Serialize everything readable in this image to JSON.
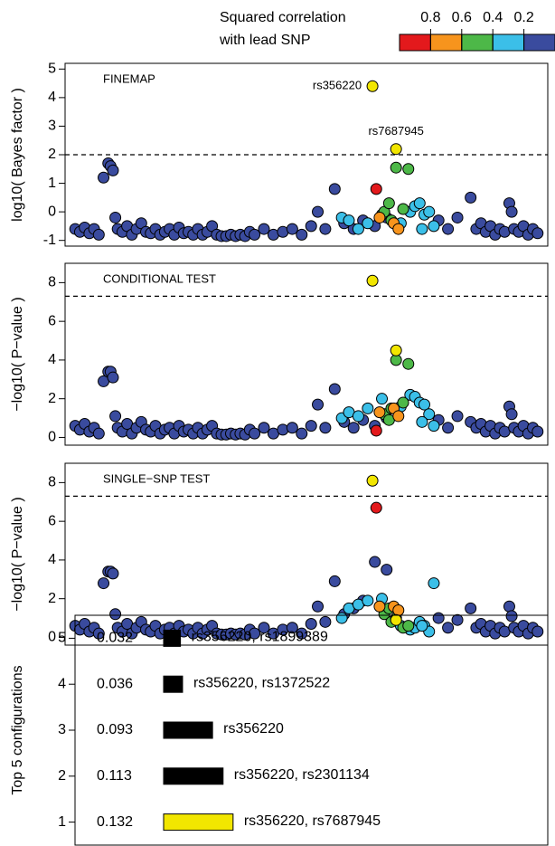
{
  "chart_data": [
    {
      "type": "scatter",
      "title": "FINEMAP",
      "y_label": "log10( Bayes factor )",
      "xlim": [
        0,
        100
      ],
      "ylim": [
        -1.2,
        5.2
      ],
      "yticks": [
        -1,
        0,
        1,
        2,
        3,
        4,
        5
      ],
      "threshold": 2,
      "colorbar": {
        "title": [
          "Squared correlation",
          "with lead SNP"
        ],
        "colors": [
          "#e3191c",
          "#f7941d",
          "#4db848",
          "#3bbfe8",
          "#3a4b9e"
        ],
        "ticks": [
          0.8,
          0.6,
          0.4,
          0.2
        ]
      },
      "series": [
        {
          "color": "#3a4b9e",
          "x": [
            1,
            2,
            3,
            4,
            5,
            6,
            7,
            8,
            8.5,
            9,
            9.5,
            10,
            11,
            12,
            13,
            14,
            15,
            16,
            17,
            18,
            19,
            20,
            21,
            22,
            23,
            24,
            25,
            26,
            27,
            28,
            29,
            30,
            31,
            32,
            33,
            34,
            35,
            36,
            37,
            38,
            39,
            41,
            43,
            45,
            47,
            49,
            51,
            52.4,
            54,
            56,
            58,
            60,
            62,
            64.5,
            67,
            78,
            80,
            82,
            84.8,
            86,
            87,
            88,
            89,
            90,
            91,
            92,
            93,
            93.5,
            94,
            95,
            96,
            97,
            98,
            99
          ],
          "values": [
            -0.6,
            -0.7,
            -0.55,
            -0.75,
            -0.6,
            -0.8,
            1.2,
            1.7,
            1.6,
            1.45,
            -0.2,
            -0.6,
            -0.7,
            -0.5,
            -0.8,
            -0.6,
            -0.4,
            -0.7,
            -0.75,
            -0.6,
            -0.8,
            -0.7,
            -0.6,
            -0.8,
            -0.55,
            -0.75,
            -0.7,
            -0.8,
            -0.6,
            -0.8,
            -0.7,
            -0.5,
            -0.8,
            -0.85,
            -0.85,
            -0.8,
            -0.85,
            -0.8,
            -0.85,
            -0.7,
            -0.8,
            -0.6,
            -0.8,
            -0.7,
            -0.6,
            -0.8,
            -0.5,
            0,
            -0.6,
            0.8,
            -0.4,
            -0.6,
            -0.3,
            -0.5,
            -0.2,
            -0.3,
            -0.6,
            -0.2,
            0.5,
            -0.6,
            -0.4,
            -0.7,
            -0.5,
            -0.8,
            -0.6,
            -0.7,
            0.3,
            0,
            -0.6,
            -0.7,
            -0.5,
            -0.8,
            -0.6,
            -0.75
          ]
        },
        {
          "color": "#3bbfe8",
          "x": [
            57.5,
            59,
            61,
            63,
            66,
            70,
            72,
            73,
            74,
            75,
            76,
            77,
            74.5
          ],
          "values": [
            -0.2,
            -0.3,
            -0.6,
            -0.4,
            -0.1,
            -0.4,
            0,
            0.2,
            0.3,
            -0.1,
            0,
            -0.5,
            -0.6
          ]
        },
        {
          "color": "#4db848",
          "x": [
            66.5,
            68,
            70.5,
            67.5,
            69,
            71.6
          ],
          "values": [
            0,
            -0.3,
            0.1,
            0.3,
            1.55,
            1.5
          ]
        },
        {
          "color": "#f7941d",
          "x": [
            65.5,
            68.5,
            69.5
          ],
          "values": [
            -0.2,
            -0.4,
            -0.6
          ]
        },
        {
          "color": "#e3191c",
          "x": [
            64.8
          ],
          "values": [
            0.8
          ]
        },
        {
          "color": "#f2e600",
          "x": [
            64,
            69
          ],
          "values": [
            4.4,
            2.2
          ],
          "point_labels": [
            "rs356220",
            "rs7687945"
          ],
          "point_label_sides": [
            "left",
            "above"
          ]
        }
      ]
    },
    {
      "type": "scatter",
      "title": "CONDITIONAL TEST",
      "y_label": "−log10( P−value )",
      "xlim": [
        0,
        100
      ],
      "ylim": [
        -0.4,
        9
      ],
      "yticks": [
        0,
        2,
        4,
        6,
        8
      ],
      "threshold": 7.3,
      "series": [
        {
          "color": "#3a4b9e",
          "x": [
            1,
            2,
            3,
            4,
            5,
            6,
            7,
            8,
            8.5,
            9,
            9.5,
            10,
            11,
            12,
            13,
            14,
            15,
            16,
            17,
            18,
            19,
            20,
            21,
            22,
            23,
            24,
            25,
            26,
            27,
            28,
            29,
            30,
            31,
            32,
            33,
            34,
            35,
            36,
            37,
            38,
            39,
            41,
            43,
            45,
            47,
            49,
            51,
            52.4,
            54,
            56,
            58,
            60,
            62,
            64.5,
            67,
            78,
            80,
            82,
            84.8,
            86,
            87,
            88,
            89,
            90,
            91,
            92,
            93,
            93.5,
            94,
            95,
            96,
            97,
            98,
            99
          ],
          "values": [
            0.6,
            0.4,
            0.7,
            0.3,
            0.5,
            0.2,
            2.9,
            3.4,
            3.4,
            3.1,
            1.1,
            0.5,
            0.3,
            0.7,
            0.2,
            0.5,
            0.8,
            0.4,
            0.3,
            0.6,
            0.2,
            0.4,
            0.5,
            0.2,
            0.6,
            0.3,
            0.4,
            0.2,
            0.5,
            0.2,
            0.4,
            0.6,
            0.2,
            0.15,
            0.15,
            0.2,
            0.15,
            0.2,
            0.15,
            0.4,
            0.2,
            0.5,
            0.2,
            0.4,
            0.5,
            0.2,
            0.6,
            1.7,
            0.5,
            2.5,
            0.8,
            0.5,
            0.9,
            0.6,
            1.0,
            0.9,
            0.5,
            1.1,
            0.8,
            0.5,
            0.7,
            0.3,
            0.6,
            0.2,
            0.5,
            0.3,
            1.6,
            1.2,
            0.5,
            0.3,
            0.6,
            0.2,
            0.5,
            0.3
          ]
        },
        {
          "color": "#3bbfe8",
          "x": [
            57.5,
            59,
            61,
            63,
            66,
            70,
            72,
            73,
            74,
            75,
            76,
            77,
            74.5
          ],
          "values": [
            1.0,
            1.3,
            1.1,
            1.5,
            2.0,
            1.6,
            2.2,
            2.1,
            1.8,
            1.7,
            1.2,
            0.6,
            0.8
          ]
        },
        {
          "color": "#4db848",
          "x": [
            66.5,
            68,
            70.5,
            67.5,
            69,
            71.6
          ],
          "values": [
            1.2,
            1.5,
            1.8,
            0.9,
            4.0,
            3.8
          ]
        },
        {
          "color": "#f7941d",
          "x": [
            65.5,
            68.5,
            69.5
          ],
          "values": [
            1.3,
            1.5,
            1.1
          ]
        },
        {
          "color": "#e3191c",
          "x": [
            64.8
          ],
          "values": [
            0.35
          ]
        },
        {
          "color": "#f2e600",
          "x": [
            64,
            69
          ],
          "values": [
            8.1,
            4.5
          ]
        }
      ]
    },
    {
      "type": "scatter",
      "title": "SINGLE−SNP TEST",
      "y_label": "−log10( P−value )",
      "xlim": [
        0,
        100
      ],
      "ylim": [
        -0.4,
        9
      ],
      "yticks": [
        0,
        2,
        4,
        6,
        8
      ],
      "threshold": 7.3,
      "series": [
        {
          "color": "#3a4b9e",
          "x": [
            1,
            2,
            3,
            4,
            5,
            6,
            7,
            8,
            8.5,
            9,
            9.5,
            10,
            11,
            12,
            13,
            14,
            15,
            16,
            17,
            18,
            19,
            20,
            21,
            22,
            23,
            24,
            25,
            26,
            27,
            28,
            29,
            30,
            31,
            32,
            33,
            34,
            35,
            36,
            37,
            38,
            39,
            41,
            43,
            45,
            47,
            49,
            51,
            52.4,
            54,
            56,
            58,
            60,
            62,
            64.5,
            67,
            78,
            80,
            82,
            84.8,
            86,
            87,
            88,
            89,
            90,
            91,
            92,
            93,
            93.5,
            94,
            95,
            96,
            97,
            98,
            99
          ],
          "values": [
            0.6,
            0.4,
            0.7,
            0.3,
            0.5,
            0.2,
            2.8,
            3.4,
            3.4,
            3.3,
            1.2,
            0.5,
            0.3,
            0.7,
            0.2,
            0.5,
            0.8,
            0.4,
            0.3,
            0.6,
            0.2,
            0.4,
            0.5,
            0.2,
            0.6,
            0.3,
            0.4,
            0.2,
            0.5,
            0.2,
            0.4,
            0.6,
            0.2,
            0.15,
            0.15,
            0.2,
            0.15,
            0.2,
            0.15,
            0.4,
            0.2,
            0.5,
            0.2,
            0.4,
            0.5,
            0.2,
            0.7,
            1.6,
            0.8,
            2.9,
            1.2,
            1.5,
            1.9,
            3.9,
            3.5,
            1.0,
            0.5,
            0.9,
            1.5,
            0.5,
            0.7,
            0.3,
            0.6,
            0.2,
            0.5,
            0.3,
            1.6,
            1.1,
            0.5,
            0.3,
            0.6,
            0.2,
            0.5,
            0.3
          ]
        },
        {
          "color": "#3bbfe8",
          "x": [
            57.5,
            59,
            61,
            63,
            66,
            70,
            72,
            73,
            74,
            75,
            76,
            77,
            74.5
          ],
          "values": [
            1.0,
            1.5,
            1.7,
            1.9,
            2.0,
            0.6,
            0.4,
            0.5,
            0.8,
            0.6,
            0.3,
            2.8,
            0.6
          ]
        },
        {
          "color": "#4db848",
          "x": [
            66.5,
            68,
            70.5,
            67.5,
            69,
            71.6
          ],
          "values": [
            1.2,
            0.8,
            0.5,
            1.5,
            1.0,
            0.6
          ]
        },
        {
          "color": "#f7941d",
          "x": [
            65.5,
            68.5,
            69.5
          ],
          "values": [
            1.6,
            1.6,
            1.4
          ]
        },
        {
          "color": "#e3191c",
          "x": [
            64.8
          ],
          "values": [
            6.7
          ]
        },
        {
          "color": "#f2e600",
          "x": [
            64,
            69
          ],
          "values": [
            8.1,
            0.9
          ]
        }
      ]
    },
    {
      "type": "bar",
      "y_label": "Top 5 configurations",
      "xlim": [
        0,
        0.73
      ],
      "categories": [
        "1",
        "2",
        "3",
        "4",
        "5"
      ],
      "values": [
        0.132,
        0.113,
        0.093,
        0.036,
        0.032
      ],
      "configurations": [
        "rs356220, rs7687945",
        "rs356220, rs2301134",
        "rs356220",
        "rs356220, rs1372522",
        "rs356220, rs1899389"
      ],
      "colors": [
        "#f2e600",
        "#000000",
        "#000000",
        "#000000",
        "#000000"
      ]
    }
  ]
}
